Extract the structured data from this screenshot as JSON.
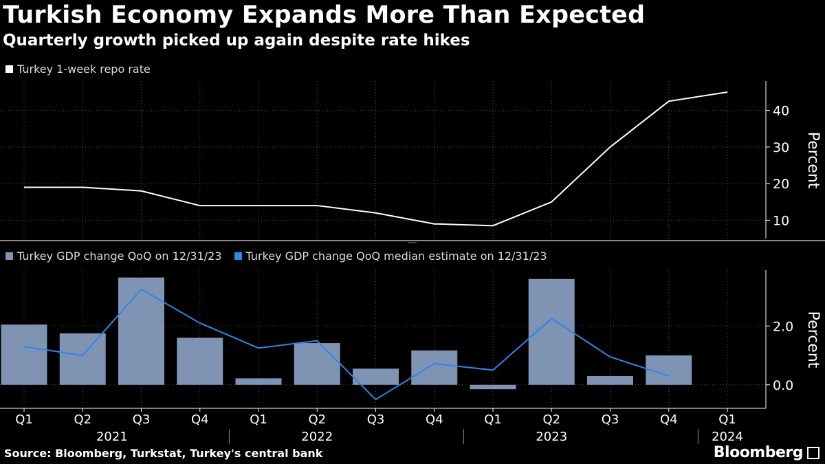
{
  "header": {
    "title": "Turkish Economy Expands More Than Expected",
    "subtitle": "Quarterly growth picked up again despite rate hikes"
  },
  "footer": {
    "source": "Source: Bloomberg, Turkstat, Turkey's central bank",
    "brand": "Bloomberg",
    "brand_icon": "bloomberg-terminal-icon"
  },
  "colors": {
    "background": "#000000",
    "rate_line": "#ffffff",
    "gdp_bar": "#7f93b3",
    "estimate_line": "#2f86ea",
    "grid": "#555555"
  },
  "chart_data": [
    {
      "type": "line",
      "panel": "top",
      "title": "Turkey 1-week repo rate",
      "ylabel": "Percent",
      "ylim": [
        5,
        48
      ],
      "yticks": [
        10,
        20,
        30,
        40
      ],
      "grid": true,
      "legend": "top-left",
      "categories": [
        "Q1 2021",
        "Q2 2021",
        "Q3 2021",
        "Q4 2021",
        "Q1 2022",
        "Q2 2022",
        "Q3 2022",
        "Q4 2022",
        "Q1 2023",
        "Q2 2023",
        "Q3 2023",
        "Q4 2023",
        "Q1 2024"
      ],
      "series": [
        {
          "name": "Turkey 1-week repo rate",
          "values": [
            19,
            19,
            18,
            14,
            14,
            14,
            12,
            9,
            8.5,
            15,
            30,
            42.5,
            45
          ]
        }
      ]
    },
    {
      "type": "bar",
      "panel": "bottom",
      "ylabel": "Percent",
      "ylim": [
        -0.8,
        3.9
      ],
      "yticks": [
        0.0,
        2.0
      ],
      "ytick_labels": [
        "0.0",
        "2.0"
      ],
      "grid": true,
      "legend": "top-left",
      "categories": [
        "Q1",
        "Q2",
        "Q3",
        "Q4",
        "Q1",
        "Q2",
        "Q3",
        "Q4",
        "Q1",
        "Q2",
        "Q3",
        "Q4",
        "Q1"
      ],
      "year_labels": [
        "2021",
        "2022",
        "2023",
        "2024"
      ],
      "series": [
        {
          "name": "Turkey GDP change QoQ on 12/31/23",
          "kind": "bar",
          "values": [
            2.05,
            1.75,
            3.65,
            1.6,
            0.22,
            1.42,
            0.55,
            1.17,
            -0.15,
            3.6,
            0.3,
            1.0,
            null
          ]
        },
        {
          "name": "Turkey GDP change QoQ median estimate on 12/31/23",
          "kind": "line",
          "values": [
            1.3,
            1.0,
            3.25,
            2.1,
            1.25,
            1.5,
            -0.5,
            0.72,
            0.5,
            2.25,
            0.95,
            0.3,
            null
          ]
        }
      ]
    }
  ]
}
